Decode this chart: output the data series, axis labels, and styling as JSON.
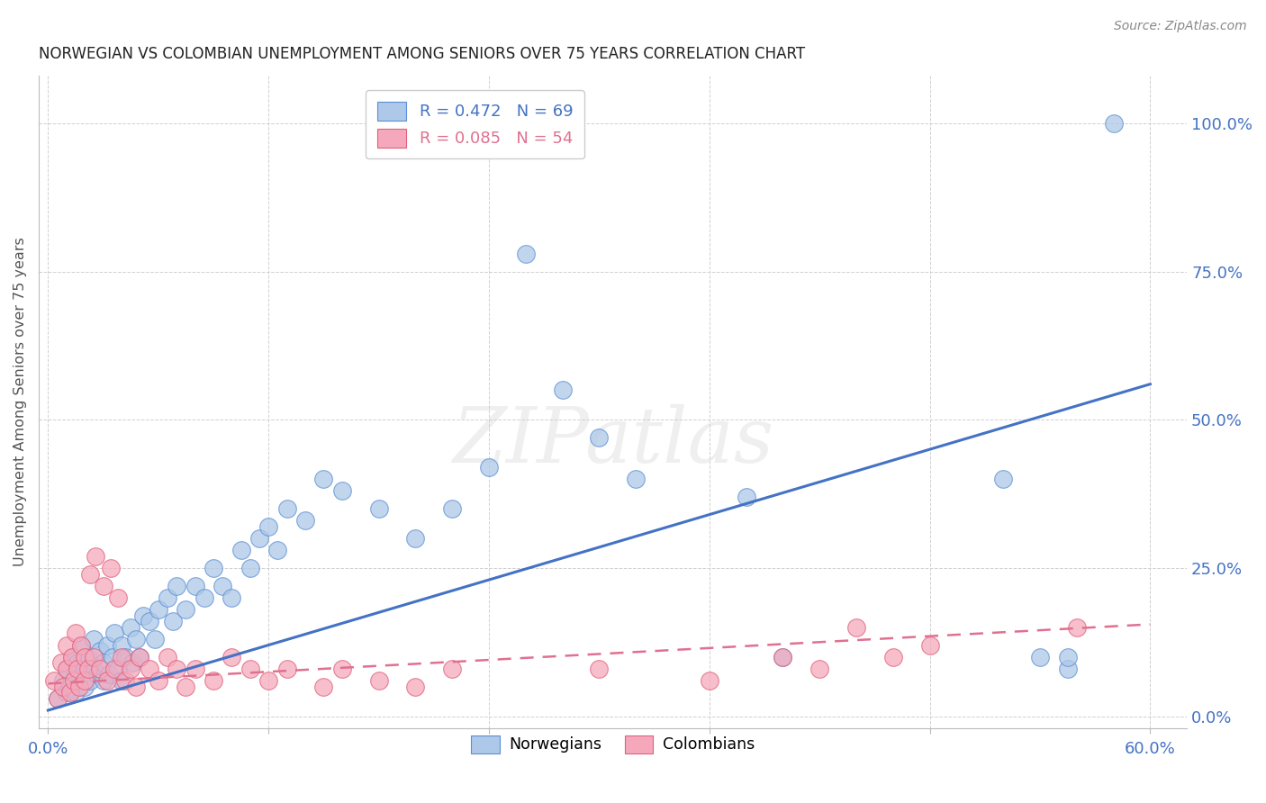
{
  "title": "NORWEGIAN VS COLOMBIAN UNEMPLOYMENT AMONG SENIORS OVER 75 YEARS CORRELATION CHART",
  "source": "Source: ZipAtlas.com",
  "ylabel": "Unemployment Among Seniors over 75 years",
  "ytick_labels": [
    "0.0%",
    "25.0%",
    "50.0%",
    "75.0%",
    "100.0%"
  ],
  "ytick_values": [
    0.0,
    0.25,
    0.5,
    0.75,
    1.0
  ],
  "xlim": [
    -0.005,
    0.62
  ],
  "ylim": [
    -0.02,
    1.08
  ],
  "watermark_text": "ZIPatlas",
  "legend_nor_text": "R = 0.472   N = 69",
  "legend_col_text": "R = 0.085   N = 54",
  "legend_label_nor": "Norwegians",
  "legend_label_col": "Colombians",
  "color_norwegian": "#adc8e8",
  "color_colombian": "#f5a8bc",
  "color_nor_edge": "#5b8fd4",
  "color_col_edge": "#e0607a",
  "color_nor_line": "#4472c4",
  "color_col_line": "#e07090",
  "color_nor_text": "#4472c4",
  "color_col_text": "#e07090",
  "title_color": "#222222",
  "source_color": "#888888",
  "axis_tick_color": "#4472c4",
  "grid_color": "#d0d0d0",
  "norwegian_x": [
    0.005,
    0.008,
    0.01,
    0.01,
    0.012,
    0.013,
    0.015,
    0.015,
    0.016,
    0.018,
    0.02,
    0.02,
    0.022,
    0.023,
    0.025,
    0.025,
    0.027,
    0.028,
    0.03,
    0.03,
    0.032,
    0.033,
    0.035,
    0.036,
    0.038,
    0.04,
    0.04,
    0.042,
    0.045,
    0.046,
    0.048,
    0.05,
    0.052,
    0.055,
    0.058,
    0.06,
    0.065,
    0.068,
    0.07,
    0.075,
    0.08,
    0.085,
    0.09,
    0.095,
    0.1,
    0.105,
    0.11,
    0.115,
    0.12,
    0.125,
    0.13,
    0.14,
    0.15,
    0.16,
    0.18,
    0.2,
    0.22,
    0.24,
    0.26,
    0.28,
    0.3,
    0.32,
    0.38,
    0.4,
    0.52,
    0.54,
    0.555,
    0.555,
    0.58
  ],
  "norwegian_y": [
    0.03,
    0.06,
    0.04,
    0.08,
    0.05,
    0.1,
    0.04,
    0.07,
    0.09,
    0.12,
    0.05,
    0.08,
    0.1,
    0.06,
    0.08,
    0.13,
    0.07,
    0.11,
    0.06,
    0.09,
    0.12,
    0.07,
    0.1,
    0.14,
    0.08,
    0.06,
    0.12,
    0.1,
    0.15,
    0.09,
    0.13,
    0.1,
    0.17,
    0.16,
    0.13,
    0.18,
    0.2,
    0.16,
    0.22,
    0.18,
    0.22,
    0.2,
    0.25,
    0.22,
    0.2,
    0.28,
    0.25,
    0.3,
    0.32,
    0.28,
    0.35,
    0.33,
    0.4,
    0.38,
    0.35,
    0.3,
    0.35,
    0.42,
    0.78,
    0.55,
    0.47,
    0.4,
    0.37,
    0.1,
    0.4,
    0.1,
    0.08,
    0.1,
    1.0
  ],
  "colombian_x": [
    0.003,
    0.005,
    0.007,
    0.008,
    0.01,
    0.01,
    0.012,
    0.013,
    0.014,
    0.015,
    0.016,
    0.017,
    0.018,
    0.02,
    0.02,
    0.022,
    0.023,
    0.025,
    0.026,
    0.028,
    0.03,
    0.032,
    0.034,
    0.036,
    0.038,
    0.04,
    0.042,
    0.045,
    0.048,
    0.05,
    0.055,
    0.06,
    0.065,
    0.07,
    0.075,
    0.08,
    0.09,
    0.1,
    0.11,
    0.12,
    0.13,
    0.15,
    0.16,
    0.18,
    0.2,
    0.22,
    0.3,
    0.36,
    0.4,
    0.42,
    0.44,
    0.46,
    0.48,
    0.56
  ],
  "colombian_y": [
    0.06,
    0.03,
    0.09,
    0.05,
    0.08,
    0.12,
    0.04,
    0.1,
    0.06,
    0.14,
    0.08,
    0.05,
    0.12,
    0.06,
    0.1,
    0.08,
    0.24,
    0.1,
    0.27,
    0.08,
    0.22,
    0.06,
    0.25,
    0.08,
    0.2,
    0.1,
    0.06,
    0.08,
    0.05,
    0.1,
    0.08,
    0.06,
    0.1,
    0.08,
    0.05,
    0.08,
    0.06,
    0.1,
    0.08,
    0.06,
    0.08,
    0.05,
    0.08,
    0.06,
    0.05,
    0.08,
    0.08,
    0.06,
    0.1,
    0.08,
    0.15,
    0.1,
    0.12,
    0.15
  ],
  "nor_trend_x": [
    0.0,
    0.6
  ],
  "nor_trend_y": [
    0.01,
    0.56
  ],
  "col_trend_x": [
    0.0,
    0.6
  ],
  "col_trend_y": [
    0.055,
    0.155
  ]
}
